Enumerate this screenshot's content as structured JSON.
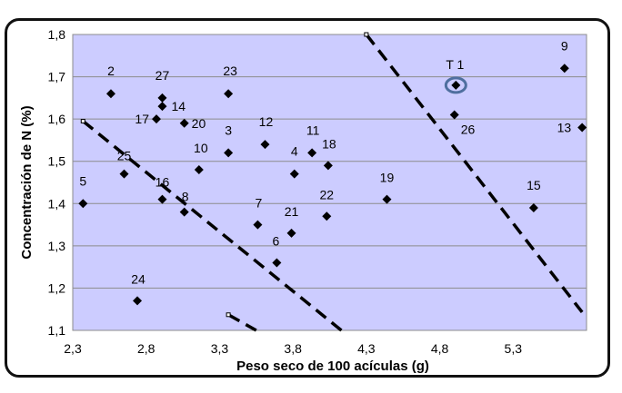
{
  "chart_data": {
    "type": "scatter",
    "title": "",
    "xlabel": "Peso seco de 100 acículas (g)",
    "ylabel": "Concentración de N (%)",
    "xlim": [
      2.3,
      5.8
    ],
    "ylim": [
      1.1,
      1.8
    ],
    "xticks": [
      "2,3",
      "2,8",
      "3,3",
      "3,8",
      "4,3",
      "4,8",
      "5,3"
    ],
    "yticks": [
      "1,1",
      "1,2",
      "1,3",
      "1,4",
      "1,5",
      "1,6",
      "1,7",
      "1,8"
    ],
    "grid": "horizontal",
    "colors": {
      "plot_bg": "#ccccff",
      "marker": "#000000",
      "highlight": "#4f6f9f",
      "grid": "#8c8c8c"
    },
    "points": [
      {
        "label": "2",
        "x": 2.56,
        "y": 1.66
      },
      {
        "label": "27",
        "x": 2.91,
        "y": 1.65
      },
      {
        "label": "14",
        "x": 2.91,
        "y": 1.63
      },
      {
        "label": "23",
        "x": 3.36,
        "y": 1.66
      },
      {
        "label": "17",
        "x": 2.87,
        "y": 1.6
      },
      {
        "label": "20",
        "x": 3.06,
        "y": 1.59
      },
      {
        "label": "3",
        "x": 3.36,
        "y": 1.52
      },
      {
        "label": "12",
        "x": 3.61,
        "y": 1.54
      },
      {
        "label": "11",
        "x": 3.93,
        "y": 1.52
      },
      {
        "label": "10",
        "x": 3.16,
        "y": 1.48
      },
      {
        "label": "25",
        "x": 2.65,
        "y": 1.47
      },
      {
        "label": "4",
        "x": 3.81,
        "y": 1.47
      },
      {
        "label": "18",
        "x": 4.04,
        "y": 1.49
      },
      {
        "label": "5",
        "x": 2.37,
        "y": 1.4
      },
      {
        "label": "16",
        "x": 2.91,
        "y": 1.41
      },
      {
        "label": "8",
        "x": 3.06,
        "y": 1.38
      },
      {
        "label": "7",
        "x": 3.56,
        "y": 1.35
      },
      {
        "label": "21",
        "x": 3.79,
        "y": 1.33
      },
      {
        "label": "22",
        "x": 4.03,
        "y": 1.37
      },
      {
        "label": "19",
        "x": 4.44,
        "y": 1.41
      },
      {
        "label": "6",
        "x": 3.69,
        "y": 1.26
      },
      {
        "label": "24",
        "x": 2.74,
        "y": 1.17
      },
      {
        "label": "T 1",
        "x": 4.91,
        "y": 1.68,
        "highlight": true
      },
      {
        "label": "26",
        "x": 4.9,
        "y": 1.61
      },
      {
        "label": "9",
        "x": 5.65,
        "y": 1.72
      },
      {
        "label": "13",
        "x": 5.77,
        "y": 1.58
      },
      {
        "label": "15",
        "x": 5.44,
        "y": 1.39
      }
    ],
    "dashed_lines": [
      {
        "x1": 2.37,
        "y1": 1.595,
        "x2": 4.13,
        "y2": 1.1
      },
      {
        "x1": 3.36,
        "y1": 1.137,
        "x2": 3.55,
        "y2": 1.1
      },
      {
        "x1": 4.3,
        "y1": 1.8,
        "x2": 5.77,
        "y2": 1.143
      }
    ]
  }
}
